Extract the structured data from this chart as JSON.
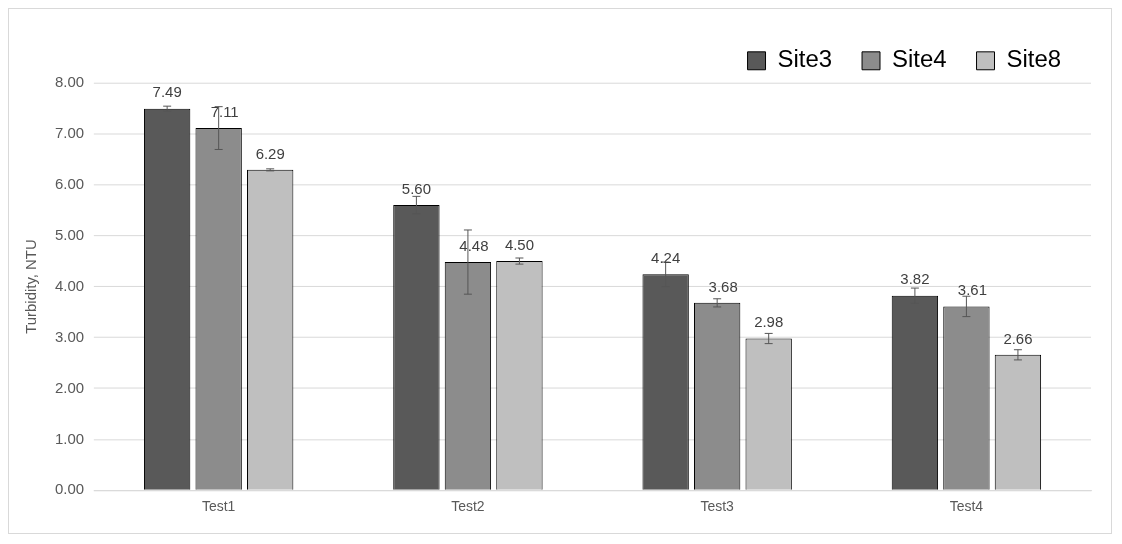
{
  "chart_data": {
    "type": "bar",
    "ylabel": "Turbidity, NTU",
    "categories": [
      "Test1",
      "Test2",
      "Test3",
      "Test4"
    ],
    "series": [
      {
        "name": "Site3",
        "color": "#595959",
        "values": [
          7.49,
          5.6,
          4.24,
          3.82
        ],
        "errors": [
          0.05,
          0.17,
          0.24,
          0.15
        ],
        "value_labels": [
          "7.49",
          "5.60",
          "4.24",
          "3.82"
        ]
      },
      {
        "name": "Site4",
        "color": "#8c8c8c",
        "values": [
          7.11,
          4.48,
          3.68,
          3.61
        ],
        "errors": [
          0.42,
          0.63,
          0.08,
          0.2
        ],
        "value_labels": [
          "7.11",
          "4.48",
          "3.68",
          "3.61"
        ]
      },
      {
        "name": "Site8",
        "color": "#bfbfbf",
        "values": [
          6.29,
          4.5,
          2.98,
          2.66
        ],
        "errors": [
          0.02,
          0.06,
          0.1,
          0.1
        ],
        "value_labels": [
          "6.29",
          "4.50",
          "2.98",
          "2.66"
        ]
      }
    ],
    "ylim": [
      0,
      8
    ],
    "yticks": [
      {
        "value": 0,
        "label": "0.00"
      },
      {
        "value": 1,
        "label": "1.00"
      },
      {
        "value": 2,
        "label": "2.00"
      },
      {
        "value": 3,
        "label": "3.00"
      },
      {
        "value": 4,
        "label": "4.00"
      },
      {
        "value": 5,
        "label": "5.00"
      },
      {
        "value": 6,
        "label": "6.00"
      },
      {
        "value": 7,
        "label": "7.00"
      },
      {
        "value": 8,
        "label": "8.00"
      }
    ],
    "grid": "y",
    "legend": "top right"
  }
}
